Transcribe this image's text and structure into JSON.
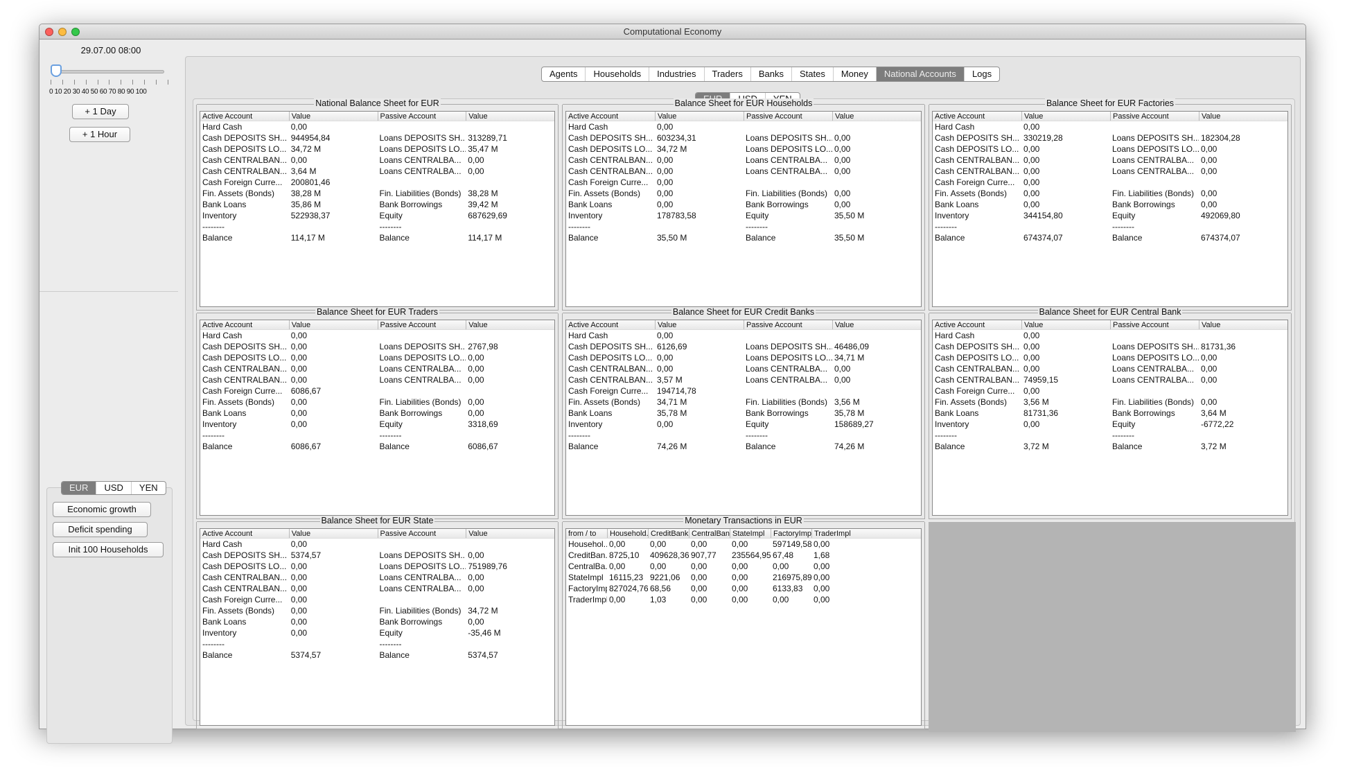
{
  "window": {
    "title": "Computational Economy"
  },
  "left": {
    "date": "29.07.00 08:00",
    "slider": {
      "value": 0,
      "min": 0,
      "max": 100,
      "labels": [
        "0",
        "10",
        "20",
        "30",
        "40",
        "50",
        "60",
        "70",
        "80",
        "90",
        "100"
      ]
    },
    "plus_day": "+ 1 Day",
    "plus_hour": "+ 1 Hour",
    "currencies": [
      "EUR",
      "USD",
      "YEN"
    ],
    "selected_currency": "EUR",
    "actions": [
      "Economic growth",
      "Deficit spending",
      "Init 100 Households"
    ]
  },
  "tabs": [
    "Agents",
    "Households",
    "Industries",
    "Traders",
    "Banks",
    "States",
    "Money",
    "National Accounts",
    "Logs"
  ],
  "active_tab": "National Accounts",
  "currency_tabs": [
    "EUR",
    "USD",
    "YEN"
  ],
  "sheet_headers": [
    "Active Account",
    "Value",
    "Passive Account",
    "Value"
  ],
  "sheets": [
    {
      "title": "National Balance Sheet for EUR",
      "rows": [
        [
          "Hard Cash",
          "0,00",
          "",
          ""
        ],
        [
          "Cash DEPOSITS SH...",
          "944954,84",
          "Loans DEPOSITS SH...",
          "313289,71"
        ],
        [
          "Cash DEPOSITS LO...",
          "34,72 M",
          "Loans DEPOSITS LO...",
          "35,47 M"
        ],
        [
          "Cash CENTRALBAN...",
          "0,00",
          "Loans CENTRALBA...",
          "0,00"
        ],
        [
          "Cash CENTRALBAN...",
          "3,64 M",
          "Loans CENTRALBA...",
          "0,00"
        ],
        [
          "Cash Foreign Curre...",
          "200801,46",
          "",
          ""
        ],
        [
          "Fin. Assets (Bonds)",
          "38,28 M",
          "Fin. Liabilities (Bonds)",
          "38,28 M"
        ],
        [
          "Bank Loans",
          "35,86 M",
          "Bank Borrowings",
          "39,42 M"
        ],
        [
          "Inventory",
          "522938,37",
          "Equity",
          "687629,69"
        ],
        [
          "--------",
          "",
          "--------",
          ""
        ],
        [
          "Balance",
          "114,17 M",
          "Balance",
          "114,17 M"
        ]
      ]
    },
    {
      "title": "Balance Sheet for EUR Households",
      "rows": [
        [
          "Hard Cash",
          "0,00",
          "",
          ""
        ],
        [
          "Cash DEPOSITS SH...",
          "603234,31",
          "Loans DEPOSITS SH...",
          "0,00"
        ],
        [
          "Cash DEPOSITS LO...",
          "34,72 M",
          "Loans DEPOSITS LO...",
          "0,00"
        ],
        [
          "Cash CENTRALBAN...",
          "0,00",
          "Loans CENTRALBA...",
          "0,00"
        ],
        [
          "Cash CENTRALBAN...",
          "0,00",
          "Loans CENTRALBA...",
          "0,00"
        ],
        [
          "Cash Foreign Curre...",
          "0,00",
          "",
          ""
        ],
        [
          "Fin. Assets (Bonds)",
          "0,00",
          "Fin. Liabilities (Bonds)",
          "0,00"
        ],
        [
          "Bank Loans",
          "0,00",
          "Bank Borrowings",
          "0,00"
        ],
        [
          "Inventory",
          "178783,58",
          "Equity",
          "35,50 M"
        ],
        [
          "--------",
          "",
          "--------",
          ""
        ],
        [
          "Balance",
          "35,50 M",
          "Balance",
          "35,50 M"
        ]
      ]
    },
    {
      "title": "Balance Sheet for EUR Factories",
      "rows": [
        [
          "Hard Cash",
          "0,00",
          "",
          ""
        ],
        [
          "Cash DEPOSITS SH...",
          "330219,28",
          "Loans DEPOSITS SH...",
          "182304,28"
        ],
        [
          "Cash DEPOSITS LO...",
          "0,00",
          "Loans DEPOSITS LO...",
          "0,00"
        ],
        [
          "Cash CENTRALBAN...",
          "0,00",
          "Loans CENTRALBA...",
          "0,00"
        ],
        [
          "Cash CENTRALBAN...",
          "0,00",
          "Loans CENTRALBA...",
          "0,00"
        ],
        [
          "Cash Foreign Curre...",
          "0,00",
          "",
          ""
        ],
        [
          "Fin. Assets (Bonds)",
          "0,00",
          "Fin. Liabilities (Bonds)",
          "0,00"
        ],
        [
          "Bank Loans",
          "0,00",
          "Bank Borrowings",
          "0,00"
        ],
        [
          "Inventory",
          "344154,80",
          "Equity",
          "492069,80"
        ],
        [
          "--------",
          "",
          "--------",
          ""
        ],
        [
          "Balance",
          "674374,07",
          "Balance",
          "674374,07"
        ]
      ]
    },
    {
      "title": "Balance Sheet for EUR Traders",
      "rows": [
        [
          "Hard Cash",
          "0,00",
          "",
          ""
        ],
        [
          "Cash DEPOSITS SH...",
          "0,00",
          "Loans DEPOSITS SH...",
          "2767,98"
        ],
        [
          "Cash DEPOSITS LO...",
          "0,00",
          "Loans DEPOSITS LO...",
          "0,00"
        ],
        [
          "Cash CENTRALBAN...",
          "0,00",
          "Loans CENTRALBA...",
          "0,00"
        ],
        [
          "Cash CENTRALBAN...",
          "0,00",
          "Loans CENTRALBA...",
          "0,00"
        ],
        [
          "Cash Foreign Curre...",
          "6086,67",
          "",
          ""
        ],
        [
          "Fin. Assets (Bonds)",
          "0,00",
          "Fin. Liabilities (Bonds)",
          "0,00"
        ],
        [
          "Bank Loans",
          "0,00",
          "Bank Borrowings",
          "0,00"
        ],
        [
          "Inventory",
          "0,00",
          "Equity",
          "3318,69"
        ],
        [
          "--------",
          "",
          "--------",
          ""
        ],
        [
          "Balance",
          "6086,67",
          "Balance",
          "6086,67"
        ]
      ]
    },
    {
      "title": "Balance Sheet for EUR Credit Banks",
      "rows": [
        [
          "Hard Cash",
          "0,00",
          "",
          ""
        ],
        [
          "Cash DEPOSITS SH...",
          "6126,69",
          "Loans DEPOSITS SH...",
          "46486,09"
        ],
        [
          "Cash DEPOSITS LO...",
          "0,00",
          "Loans DEPOSITS LO...",
          "34,71 M"
        ],
        [
          "Cash CENTRALBAN...",
          "0,00",
          "Loans CENTRALBA...",
          "0,00"
        ],
        [
          "Cash CENTRALBAN...",
          "3,57 M",
          "Loans CENTRALBA...",
          "0,00"
        ],
        [
          "Cash Foreign Curre...",
          "194714,78",
          "",
          ""
        ],
        [
          "Fin. Assets (Bonds)",
          "34,71 M",
          "Fin. Liabilities (Bonds)",
          "3,56 M"
        ],
        [
          "Bank Loans",
          "35,78 M",
          "Bank Borrowings",
          "35,78 M"
        ],
        [
          "Inventory",
          "0,00",
          "Equity",
          "158689,27"
        ],
        [
          "--------",
          "",
          "--------",
          ""
        ],
        [
          "Balance",
          "74,26 M",
          "Balance",
          "74,26 M"
        ]
      ]
    },
    {
      "title": "Balance Sheet for EUR Central Bank",
      "rows": [
        [
          "Hard Cash",
          "0,00",
          "",
          ""
        ],
        [
          "Cash DEPOSITS SH...",
          "0,00",
          "Loans DEPOSITS SH...",
          "81731,36"
        ],
        [
          "Cash DEPOSITS LO...",
          "0,00",
          "Loans DEPOSITS LO...",
          "0,00"
        ],
        [
          "Cash CENTRALBAN...",
          "0,00",
          "Loans CENTRALBA...",
          "0,00"
        ],
        [
          "Cash CENTRALBAN...",
          "74959,15",
          "Loans CENTRALBA...",
          "0,00"
        ],
        [
          "Cash Foreign Curre...",
          "0,00",
          "",
          ""
        ],
        [
          "Fin. Assets (Bonds)",
          "3,56 M",
          "Fin. Liabilities (Bonds)",
          "0,00"
        ],
        [
          "Bank Loans",
          "81731,36",
          "Bank Borrowings",
          "3,64 M"
        ],
        [
          "Inventory",
          "0,00",
          "Equity",
          "-6772,22"
        ],
        [
          "--------",
          "",
          "--------",
          ""
        ],
        [
          "Balance",
          "3,72 M",
          "Balance",
          "3,72 M"
        ]
      ]
    },
    {
      "title": "Balance Sheet for EUR State",
      "rows": [
        [
          "Hard Cash",
          "0,00",
          "",
          ""
        ],
        [
          "Cash DEPOSITS SH...",
          "5374,57",
          "Loans DEPOSITS SH...",
          "0,00"
        ],
        [
          "Cash DEPOSITS LO...",
          "0,00",
          "Loans DEPOSITS LO...",
          "751989,76"
        ],
        [
          "Cash CENTRALBAN...",
          "0,00",
          "Loans CENTRALBA...",
          "0,00"
        ],
        [
          "Cash CENTRALBAN...",
          "0,00",
          "Loans CENTRALBA...",
          "0,00"
        ],
        [
          "Cash Foreign Curre...",
          "0,00",
          "",
          ""
        ],
        [
          "Fin. Assets (Bonds)",
          "0,00",
          "Fin. Liabilities (Bonds)",
          "34,72 M"
        ],
        [
          "Bank Loans",
          "0,00",
          "Bank Borrowings",
          "0,00"
        ],
        [
          "Inventory",
          "0,00",
          "Equity",
          "-35,46 M"
        ],
        [
          "--------",
          "",
          "--------",
          ""
        ],
        [
          "Balance",
          "5374,57",
          "Balance",
          "5374,57"
        ]
      ]
    }
  ],
  "transactions": {
    "title": "Monetary Transactions in EUR",
    "headers": [
      "from / to",
      "Household...",
      "CreditBank...",
      "CentralBan...",
      "StateImpl",
      "FactoryImpl",
      "TraderImpl"
    ],
    "rows": [
      [
        "Househol...",
        "0,00",
        "0,00",
        "0,00",
        "0,00",
        "597149,58",
        "0,00"
      ],
      [
        "CreditBan...",
        "8725,10",
        "409628,36",
        "907,77",
        "235564,95",
        "67,48",
        "1,68"
      ],
      [
        "CentralBa...",
        "0,00",
        "0,00",
        "0,00",
        "0,00",
        "0,00",
        "0,00"
      ],
      [
        "StateImpl",
        "16115,23",
        "9221,06",
        "0,00",
        "0,00",
        "216975,89",
        "0,00"
      ],
      [
        "FactoryImpl",
        "827024,76",
        "68,56",
        "0,00",
        "0,00",
        "6133,83",
        "0,00"
      ],
      [
        "TraderImpl",
        "0,00",
        "1,03",
        "0,00",
        "0,00",
        "0,00",
        "0,00"
      ]
    ]
  },
  "colors": {
    "selected_segment": "#7d7d7d",
    "empty_area": "#b4b4b4"
  }
}
